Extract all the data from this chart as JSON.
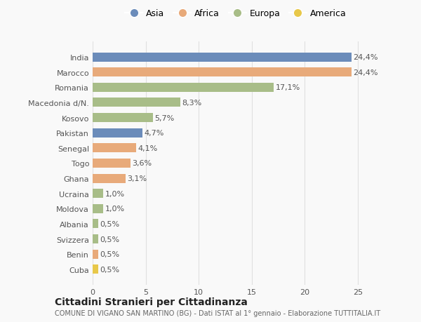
{
  "countries": [
    "Cuba",
    "Benin",
    "Svizzera",
    "Albania",
    "Moldova",
    "Ucraina",
    "Ghana",
    "Togo",
    "Senegal",
    "Pakistan",
    "Kosovo",
    "Macedonia d/N.",
    "Romania",
    "Marocco",
    "India"
  ],
  "values": [
    0.5,
    0.5,
    0.5,
    0.5,
    1.0,
    1.0,
    3.1,
    3.6,
    4.1,
    4.7,
    5.7,
    8.3,
    17.1,
    24.4,
    24.4
  ],
  "labels": [
    "0,5%",
    "0,5%",
    "0,5%",
    "0,5%",
    "1,0%",
    "1,0%",
    "3,1%",
    "3,6%",
    "4,1%",
    "4,7%",
    "5,7%",
    "8,3%",
    "17,1%",
    "24,4%",
    "24,4%"
  ],
  "continents": [
    "America",
    "Africa",
    "Europa",
    "Europa",
    "Europa",
    "Europa",
    "Africa",
    "Africa",
    "Africa",
    "Asia",
    "Europa",
    "Europa",
    "Europa",
    "Africa",
    "Asia"
  ],
  "colors": {
    "Asia": "#6b8cba",
    "Africa": "#e8aa7a",
    "Europa": "#a8bd88",
    "America": "#e8c84a"
  },
  "legend_order": [
    "Asia",
    "Africa",
    "Europa",
    "America"
  ],
  "title": "Cittadini Stranieri per Cittadinanza",
  "subtitle": "COMUNE DI VIGANO SAN MARTINO (BG) - Dati ISTAT al 1° gennaio - Elaborazione TUTTITALIA.IT",
  "xlim": [
    0,
    27
  ],
  "background_color": "#f9f9f9",
  "grid_color": "#e0e0e0",
  "bar_height": 0.6,
  "label_fontsize": 8,
  "ytick_fontsize": 8,
  "xtick_fontsize": 8,
  "title_fontsize": 10,
  "subtitle_fontsize": 7
}
